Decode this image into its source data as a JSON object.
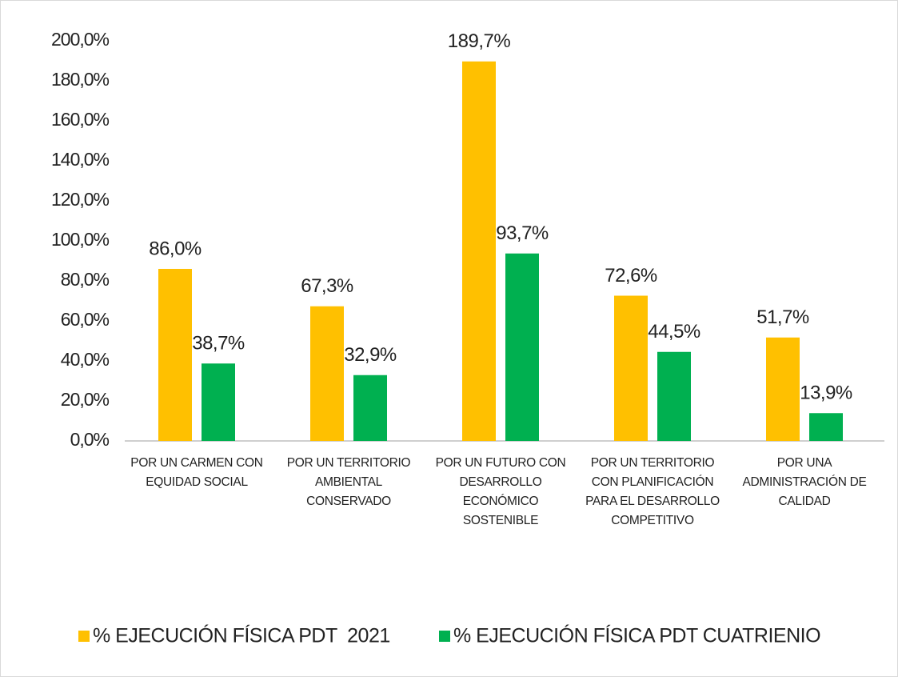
{
  "chart_data": {
    "type": "bar",
    "categories": [
      "POR UN CARMEN CON EQUIDAD SOCIAL",
      "POR UN TERRITORIO AMBIENTAL CONSERVADO",
      "POR UN FUTURO CON DESARROLLO ECONÓMICO SOSTENIBLE",
      "POR UN TERRITORIO CON PLANIFICACIÓN PARA EL DESARROLLO COMPETITIVO",
      "POR UNA ADMINISTRACIÓN DE CALIDAD"
    ],
    "series": [
      {
        "name": "% EJECUCIÓN FÍSICA PDT  2021",
        "color": "#FFC000",
        "values": [
          86.0,
          67.3,
          189.7,
          72.6,
          51.7
        ],
        "value_labels": [
          "86,0%",
          "67,3%",
          "189,7%",
          "72,6%",
          "51,7%"
        ]
      },
      {
        "name": "% EJECUCIÓN FÍSICA PDT CUATRIENIO",
        "color": "#00B050",
        "values": [
          38.7,
          32.9,
          93.7,
          44.5,
          13.9
        ],
        "value_labels": [
          "38,7%",
          "32,9%",
          "93,7%",
          "44,5%",
          "13,9%"
        ]
      }
    ],
    "ylim": [
      0,
      200
    ],
    "yticks": [
      {
        "value": 0,
        "label": "0,0%"
      },
      {
        "value": 20,
        "label": "20,0%"
      },
      {
        "value": 40,
        "label": "40,0%"
      },
      {
        "value": 60,
        "label": "60,0%"
      },
      {
        "value": 80,
        "label": "80,0%"
      },
      {
        "value": 100,
        "label": "100,0%"
      },
      {
        "value": 120,
        "label": "120,0%"
      },
      {
        "value": 140,
        "label": "140,0%"
      },
      {
        "value": 160,
        "label": "160,0%"
      },
      {
        "value": 180,
        "label": "180,0%"
      },
      {
        "value": 200,
        "label": "200,0%"
      }
    ],
    "legend": "bottom"
  }
}
